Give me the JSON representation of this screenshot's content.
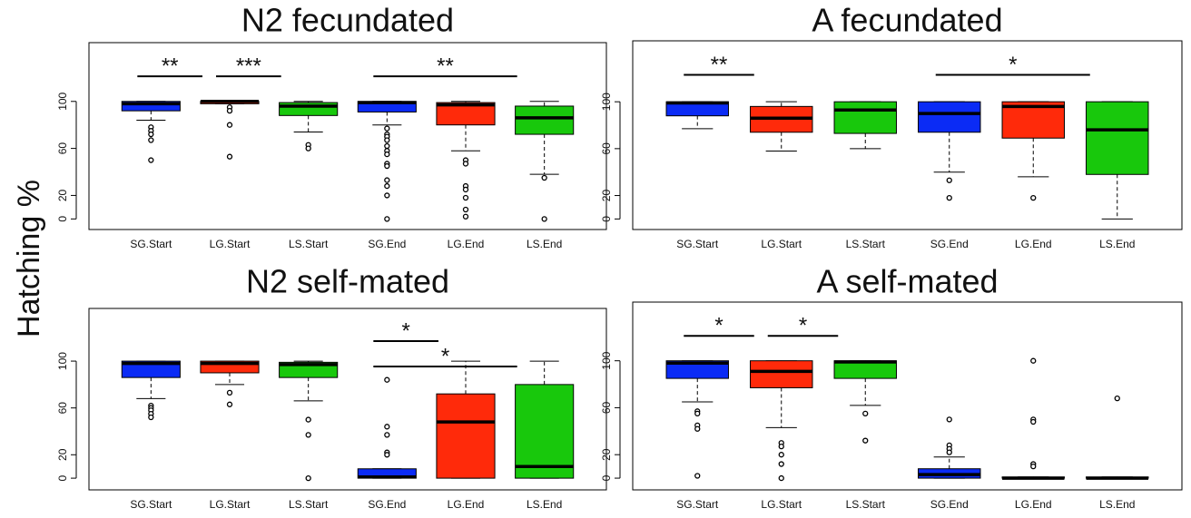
{
  "ylabel": "Hatching %",
  "chart_data": [
    {
      "type": "box",
      "title": "N2 fecundated",
      "categories": [
        "SG.Start",
        "LG.Start",
        "LS.Start",
        "SG.End",
        "LG.End",
        "LS.End"
      ],
      "colors": [
        "#0b2bf5",
        "#ff2a0a",
        "#18c80c",
        "#0b2bf5",
        "#ff2a0a",
        "#18c80c"
      ],
      "boxes": [
        {
          "whislo": 84,
          "q1": 92,
          "med": 98,
          "q3": 100,
          "whishi": 100,
          "fliers": [
            78,
            75,
            72,
            67,
            50
          ]
        },
        {
          "whislo": 98,
          "q1": 98,
          "med": 100,
          "q3": 100,
          "whishi": 100,
          "fliers": [
            95,
            92,
            80,
            53
          ]
        },
        {
          "whislo": 74,
          "q1": 88,
          "med": 96,
          "q3": 99,
          "whishi": 100,
          "fliers": [
            63,
            60
          ]
        },
        {
          "whislo": 80,
          "q1": 91,
          "med": 99,
          "q3": 100,
          "whishi": 100,
          "fliers": [
            77,
            72,
            70,
            67,
            62,
            58,
            55,
            47,
            45,
            33,
            28,
            20,
            0
          ]
        },
        {
          "whislo": 58,
          "q1": 80,
          "med": 97,
          "q3": 99,
          "whishi": 100,
          "fliers": [
            50,
            47,
            28,
            25,
            18,
            8,
            2
          ]
        },
        {
          "whislo": 38,
          "q1": 72,
          "med": 86,
          "q3": 96,
          "whishi": 100,
          "fliers": [
            35,
            0
          ]
        }
      ],
      "annotations": [
        {
          "label": "**",
          "from": "SG.Start",
          "to": "LG.Start"
        },
        {
          "label": "***",
          "from": "LG.Start",
          "to": "LS.Start"
        },
        {
          "label": "**",
          "from": "SG.End",
          "to": "LS.End"
        }
      ],
      "ylim": [
        -9,
        150
      ],
      "yticks": [
        0,
        20,
        60,
        100
      ]
    },
    {
      "type": "box",
      "title": "A fecundated",
      "categories": [
        "SG.Start",
        "LG.Start",
        "LS.Start",
        "SG.End",
        "LG.End",
        "LS.End"
      ],
      "colors": [
        "#0b2bf5",
        "#ff2a0a",
        "#18c80c",
        "#0b2bf5",
        "#ff2a0a",
        "#18c80c"
      ],
      "boxes": [
        {
          "whislo": 77,
          "q1": 88,
          "med": 99,
          "q3": 100,
          "whishi": 100,
          "fliers": []
        },
        {
          "whislo": 58,
          "q1": 74,
          "med": 86,
          "q3": 96,
          "whishi": 100,
          "fliers": []
        },
        {
          "whislo": 60,
          "q1": 73,
          "med": 93,
          "q3": 100,
          "whishi": 100,
          "fliers": []
        },
        {
          "whislo": 40,
          "q1": 74,
          "med": 90,
          "q3": 100,
          "whishi": 100,
          "fliers": [
            33,
            18
          ]
        },
        {
          "whislo": 36,
          "q1": 69,
          "med": 96,
          "q3": 100,
          "whishi": 100,
          "fliers": [
            18
          ]
        },
        {
          "whislo": 0,
          "q1": 38,
          "med": 76,
          "q3": 100,
          "whishi": 100,
          "fliers": []
        }
      ],
      "annotations": [
        {
          "label": "**",
          "from": "SG.Start",
          "to": "LG.Start"
        },
        {
          "label": "*",
          "from": "SG.End",
          "to": "LS.End"
        }
      ],
      "ylim": [
        -9,
        152
      ],
      "yticks": [
        0,
        20,
        60,
        100
      ]
    },
    {
      "type": "box",
      "title": "N2 self-mated",
      "categories": [
        "SG.Start",
        "LG.Start",
        "LS.Start",
        "SG.End",
        "LG.End",
        "LS.End"
      ],
      "colors": [
        "#0b2bf5",
        "#ff2a0a",
        "#18c80c",
        "#0b2bf5",
        "#ff2a0a",
        "#18c80c"
      ],
      "boxes": [
        {
          "whislo": 68,
          "q1": 86,
          "med": 98,
          "q3": 100,
          "whishi": 100,
          "fliers": [
            62,
            60,
            58,
            55,
            52
          ]
        },
        {
          "whislo": 80,
          "q1": 90,
          "med": 98,
          "q3": 100,
          "whishi": 100,
          "fliers": [
            73,
            63
          ]
        },
        {
          "whislo": 66,
          "q1": 86,
          "med": 97,
          "q3": 99,
          "whishi": 100,
          "fliers": [
            50,
            37,
            0
          ]
        },
        {
          "whislo": 0,
          "q1": 0,
          "med": 1,
          "q3": 8,
          "whishi": 8,
          "fliers": [
            84,
            44,
            37,
            22,
            20
          ]
        },
        {
          "whislo": 0,
          "q1": 0,
          "med": 48,
          "q3": 72,
          "whishi": 100,
          "fliers": []
        },
        {
          "whislo": 0,
          "q1": 0,
          "med": 10,
          "q3": 80,
          "whishi": 100,
          "fliers": []
        }
      ],
      "annotations": [
        {
          "label": "*",
          "from": "SG.End",
          "to": "LG.End"
        },
        {
          "label": "*",
          "from": "SG.End",
          "to": "LS.End"
        }
      ],
      "ylim": [
        -10,
        145
      ],
      "yticks": [
        0,
        20,
        60,
        100
      ]
    },
    {
      "type": "box",
      "title": "A self-mated",
      "categories": [
        "SG.Start",
        "LG.Start",
        "LS.Start",
        "SG.End",
        "LG.End",
        "LS.End"
      ],
      "colors": [
        "#0b2bf5",
        "#ff2a0a",
        "#18c80c",
        "#0b2bf5",
        "#ff2a0a",
        "#18c80c"
      ],
      "boxes": [
        {
          "whislo": 65,
          "q1": 85,
          "med": 98,
          "q3": 100,
          "whishi": 100,
          "fliers": [
            57,
            55,
            45,
            42,
            2
          ]
        },
        {
          "whislo": 43,
          "q1": 77,
          "med": 91,
          "q3": 100,
          "whishi": 100,
          "fliers": [
            30,
            27,
            20,
            12,
            0
          ]
        },
        {
          "whislo": 62,
          "q1": 85,
          "med": 99,
          "q3": 100,
          "whishi": 100,
          "fliers": [
            55,
            32
          ]
        },
        {
          "whislo": 0,
          "q1": 0,
          "med": 3,
          "q3": 8,
          "whishi": 18,
          "fliers": [
            50,
            28,
            25,
            22
          ]
        },
        {
          "whislo": 0,
          "q1": 0,
          "med": 0,
          "q3": 1,
          "whishi": 1,
          "fliers": [
            100,
            50,
            48,
            12,
            10
          ]
        },
        {
          "whislo": 0,
          "q1": 0,
          "med": 0,
          "q3": 1,
          "whishi": 1,
          "fliers": [
            68
          ]
        }
      ],
      "annotations": [
        {
          "label": "*",
          "from": "SG.Start",
          "to": "LG.Start"
        },
        {
          "label": "*",
          "from": "LG.Start",
          "to": "LS.Start"
        }
      ],
      "ylim": [
        -10,
        150
      ],
      "yticks": [
        0,
        20,
        60,
        100
      ]
    }
  ]
}
